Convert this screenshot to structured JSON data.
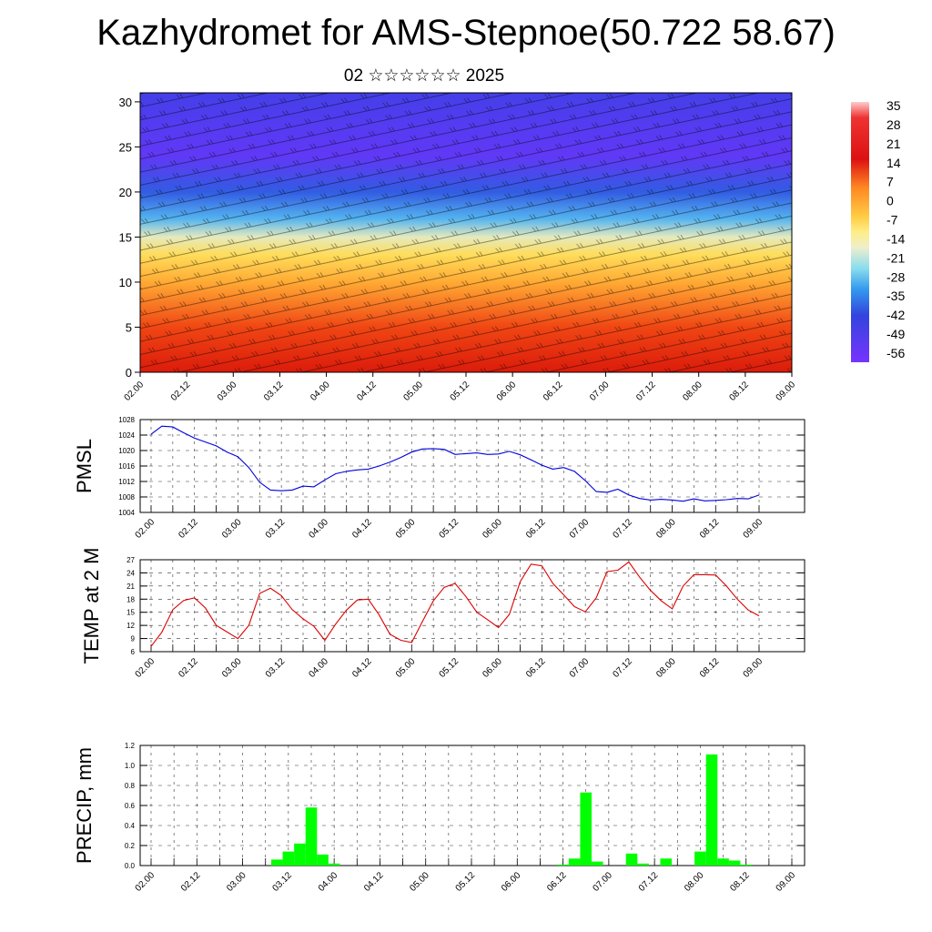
{
  "title": "Kazhydromet for AMS-Stepnoe(50.722 58.67)",
  "subtitle": "02 ☆☆☆☆☆☆ 2025",
  "time_labels": [
    "02.00",
    "02.12",
    "03.00",
    "03.12",
    "04.00",
    "04.12",
    "05.00",
    "05.12",
    "06.00",
    "06.12",
    "07.00",
    "07.12",
    "08.00",
    "08.12",
    "09.00"
  ],
  "chart_data": [
    {
      "type": "heatmap",
      "title": "Kazhydromet for AMS-Stepnoe(50.722 58.67)",
      "subtitle": "02 ☆☆☆☆☆☆ 2025",
      "x": [
        "02.00",
        "02.12",
        "03.00",
        "03.12",
        "04.00",
        "04.12",
        "05.00",
        "05.12",
        "06.00",
        "06.12",
        "07.00",
        "07.12",
        "08.00",
        "08.12",
        "09.00"
      ],
      "ylim": [
        0,
        31
      ],
      "yticks": [
        0,
        5,
        10,
        15,
        20,
        25,
        30
      ],
      "colorbar_labels": [
        35,
        28,
        21,
        14,
        7,
        0,
        -7,
        -14,
        -21,
        -28,
        -35,
        -42,
        -49,
        -56
      ],
      "colors": {
        "cold": "#6633ff",
        "mid": "#ffee66",
        "warm": "#cc0000"
      },
      "temperature_profile": [
        {
          "height": 0,
          "value": 20
        },
        {
          "height": 5,
          "value": 14
        },
        {
          "height": 10,
          "value": 5
        },
        {
          "height": 13,
          "value": -3
        },
        {
          "height": 15,
          "value": -12
        },
        {
          "height": 17,
          "value": -24
        },
        {
          "height": 20,
          "value": -38
        },
        {
          "height": 24,
          "value": -52
        },
        {
          "height": 27,
          "value": -50
        },
        {
          "height": 31,
          "value": -46
        }
      ]
    },
    {
      "type": "line",
      "ylabel": "PMSL",
      "ylim": [
        1004,
        1028
      ],
      "yticks": [
        1004,
        1008,
        1012,
        1016,
        1020,
        1024,
        1028
      ],
      "color": "#0000dd",
      "x_hours": [
        0,
        3,
        6,
        9,
        12,
        15,
        18,
        21,
        24,
        27,
        30,
        33,
        36,
        39,
        42,
        45,
        48,
        51,
        54,
        57,
        60,
        63,
        66,
        69,
        72,
        75,
        78,
        81,
        84,
        87,
        90,
        93,
        96,
        99,
        102,
        105,
        108,
        111,
        114,
        117,
        120,
        123,
        126,
        129,
        132,
        135,
        138,
        141,
        144,
        147,
        150,
        153,
        156,
        159,
        162,
        165,
        168
      ],
      "values": [
        1024.2,
        1026.3,
        1026.1,
        1024.6,
        1023.2,
        1022.2,
        1021.2,
        1019.6,
        1018.4,
        1015.6,
        1011.8,
        1009.8,
        1009.6,
        1009.8,
        1010.8,
        1010.6,
        1012.4,
        1014.0,
        1014.6,
        1015.0,
        1015.2,
        1016.0,
        1017.0,
        1018.2,
        1019.6,
        1020.4,
        1020.5,
        1020.3,
        1019.0,
        1019.2,
        1019.4,
        1019.0,
        1019.1,
        1019.8,
        1018.9,
        1017.6,
        1016.2,
        1015.2,
        1015.6,
        1014.6,
        1012.2,
        1009.4,
        1009.2,
        1010.0,
        1008.5,
        1007.6,
        1007.2,
        1007.4,
        1007.2,
        1006.9,
        1007.5,
        1007.0,
        1007.1,
        1007.3,
        1007.6,
        1007.5,
        1008.5
      ]
    },
    {
      "type": "line",
      "ylabel": "TEMP at 2 M",
      "ylim": [
        6,
        27
      ],
      "yticks": [
        6,
        9,
        12,
        15,
        18,
        21,
        24,
        27
      ],
      "color": "#dd0000",
      "x_hours": [
        0,
        3,
        6,
        9,
        12,
        15,
        18,
        21,
        24,
        27,
        30,
        33,
        36,
        39,
        42,
        45,
        48,
        51,
        54,
        57,
        60,
        63,
        66,
        69,
        72,
        75,
        78,
        81,
        84,
        87,
        90,
        93,
        96,
        99,
        102,
        105,
        108,
        111,
        114,
        117,
        120,
        123,
        126,
        129,
        132,
        135,
        138,
        141,
        144,
        147,
        150,
        153,
        156,
        159,
        162,
        165,
        168
      ],
      "values": [
        7.2,
        10.5,
        15.6,
        17.7,
        18.3,
        16.0,
        12.0,
        10.5,
        9.0,
        12.0,
        19.3,
        20.5,
        18.8,
        15.6,
        13.5,
        11.8,
        8.6,
        12.3,
        15.5,
        17.8,
        18.0,
        14.4,
        10.0,
        8.6,
        8.1,
        12.9,
        17.6,
        20.7,
        21.6,
        18.6,
        15.0,
        13.3,
        11.5,
        14.5,
        22.0,
        26.0,
        25.6,
        21.6,
        19.0,
        16.3,
        15.1,
        18.3,
        24.3,
        24.6,
        26.5,
        23.0,
        20.0,
        17.6,
        15.8,
        21.0,
        23.6,
        23.6,
        23.5,
        21.0,
        18.0,
        15.5,
        14.2
      ]
    },
    {
      "type": "bar",
      "ylabel": "PRECIP, mm",
      "ylim": [
        0,
        1.2
      ],
      "yticks": [
        0.0,
        0.2,
        0.4,
        0.6,
        0.8,
        1.0,
        1.2
      ],
      "color": "#00ff00",
      "x_hours": [
        33,
        36,
        39,
        42,
        45,
        48,
        108,
        111,
        114,
        117,
        126,
        129,
        135,
        144,
        147,
        150,
        153,
        156
      ],
      "values": [
        0.06,
        0.14,
        0.22,
        0.58,
        0.11,
        0.02,
        0.01,
        0.07,
        0.73,
        0.04,
        0.12,
        0.02,
        0.07,
        0.14,
        1.11,
        0.07,
        0.05,
        0.01
      ]
    }
  ]
}
